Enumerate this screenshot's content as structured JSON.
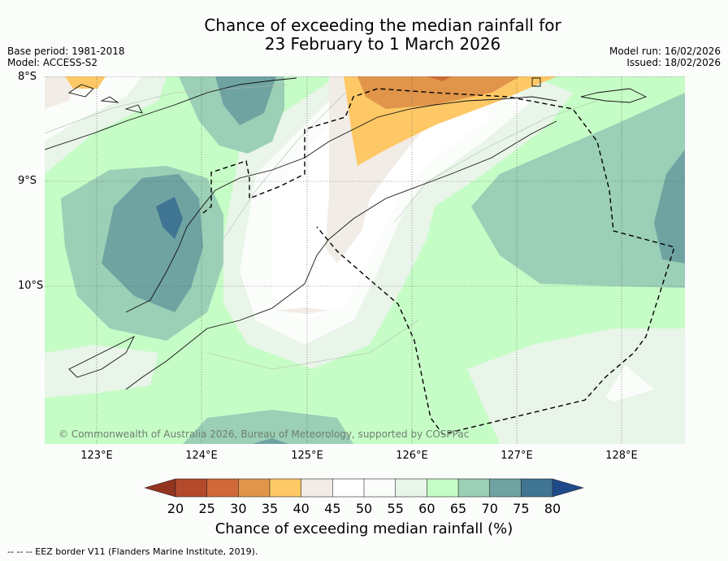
{
  "header": {
    "title_line1": "Chance of exceeding the median rainfall for",
    "title_line2": "23 February to 1 March 2026",
    "base_period": "Base period: 1981-2018",
    "model": "Model: ACCESS-S2",
    "model_run": "Model run: 16/02/2026",
    "issued": "Issued: 18/02/2026"
  },
  "map": {
    "lat_labels": [
      "8°S",
      "9°S",
      "10°S"
    ],
    "lon_labels": [
      "123°E",
      "124°E",
      "125°E",
      "126°E",
      "127°E",
      "128°E"
    ],
    "copyright": "© Commonwealth of Australia 2026, Bureau of Meteorology, supported by COSPPac"
  },
  "legend": {
    "ticks": [
      "20",
      "25",
      "30",
      "35",
      "40",
      "45",
      "50",
      "55",
      "60",
      "65",
      "70",
      "75",
      "80"
    ],
    "colors": [
      "#b44a2c",
      "#cf6a38",
      "#e0954a",
      "#fdc865",
      "#f2ece6",
      "#ffffff",
      "#fbfdfb",
      "#e8f5e8",
      "#c6fcc6",
      "#9bcfb6",
      "#6ea3a2",
      "#3f7592"
    ],
    "under_color": "#933421",
    "over_color": "#1f4a8a",
    "title": "Chance of exceeding median rainfall (%)"
  },
  "footer": {
    "eez_note": "--  --  -- EEZ border V11 (Flanders Marine Institute, 2019)."
  }
}
